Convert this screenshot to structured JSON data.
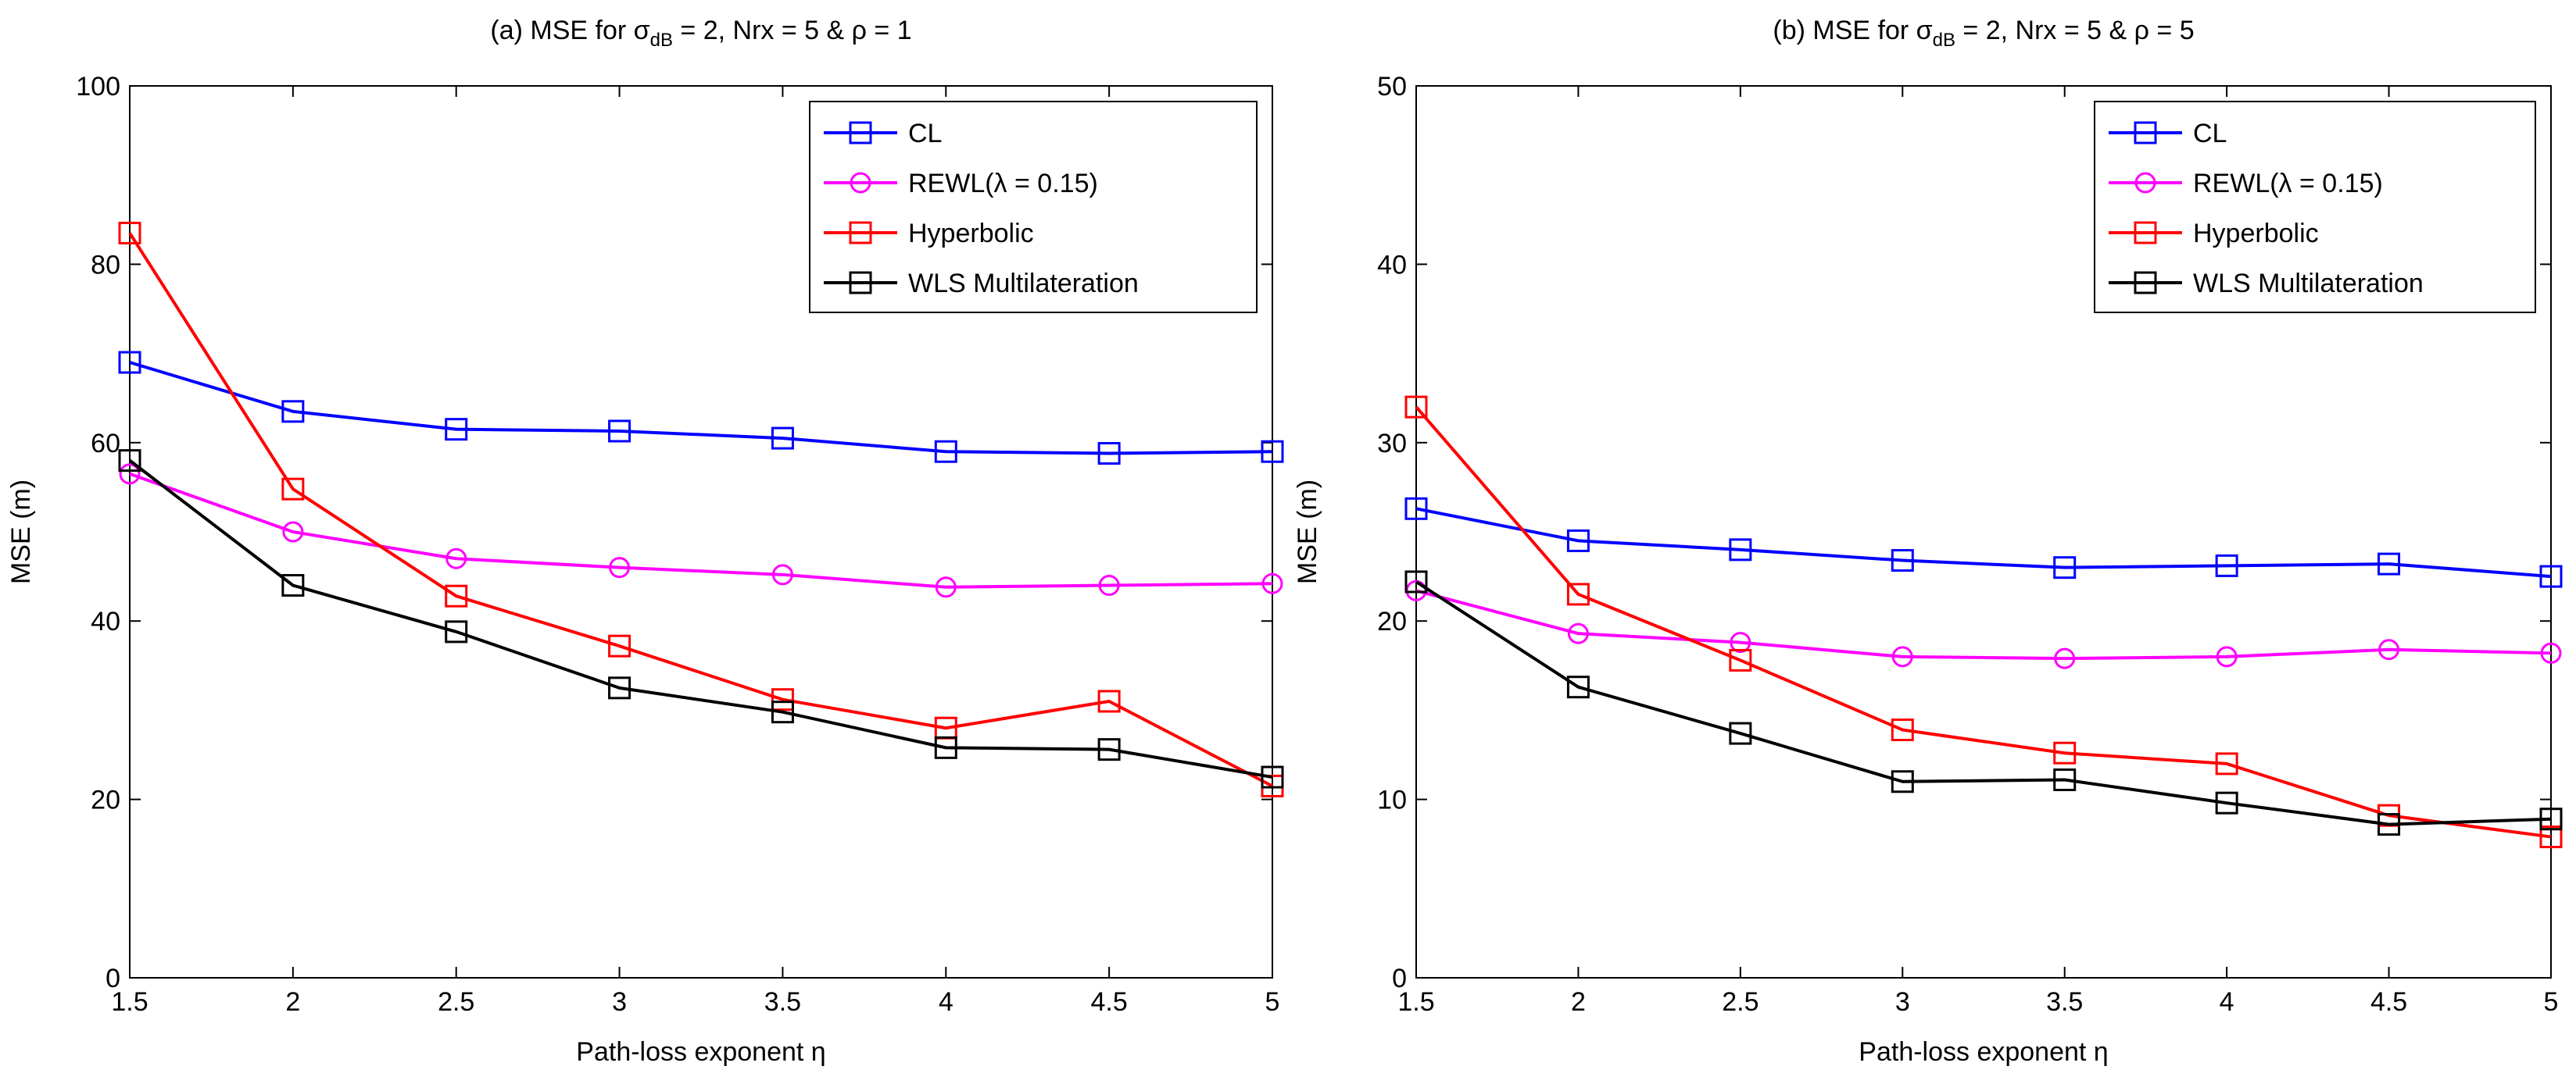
{
  "chart_data": [
    {
      "type": "line",
      "title": {
        "prefix": "(a) MSE for σ",
        "sub": "dB",
        "suffix": " = 2, Nrx = 5 & ρ = 1"
      },
      "xlabel": "Path-loss exponent η",
      "ylabel": "MSE (m)",
      "xlim": [
        1.5,
        5
      ],
      "ylim": [
        0,
        100
      ],
      "xticks": [
        1.5,
        2,
        2.5,
        3,
        3.5,
        4,
        4.5,
        5
      ],
      "xtick_labels": [
        "1.5",
        "2",
        "2.5",
        "3",
        "3.5",
        "4",
        "4.5",
        "5"
      ],
      "yticks": [
        0,
        20,
        40,
        60,
        80,
        100
      ],
      "ytick_labels": [
        "0",
        "20",
        "40",
        "60",
        "80",
        "100"
      ],
      "grid": false,
      "legend": "top-right",
      "x": [
        1.5,
        2,
        2.5,
        3,
        3.5,
        4,
        4.5,
        5
      ],
      "series": [
        {
          "name": "CL",
          "color": "#0000ff",
          "marker": "square",
          "values": [
            69,
            63.5,
            61.5,
            61.3,
            60.5,
            59,
            58.8,
            59
          ]
        },
        {
          "name": "REWL(λ = 0.15)",
          "color": "#ff00ff",
          "marker": "circle",
          "values": [
            56.5,
            50,
            47,
            46,
            45.2,
            43.8,
            44,
            44.2
          ]
        },
        {
          "name": "Hyperbolic",
          "color": "#ff0000",
          "marker": "square",
          "values": [
            83.5,
            54.8,
            42.8,
            37.2,
            31.2,
            28,
            31,
            21.5
          ]
        },
        {
          "name": "WLS Multilateration",
          "color": "#000000",
          "marker": "square",
          "values": [
            58,
            44,
            38.8,
            32.5,
            29.8,
            25.8,
            25.6,
            22.5
          ]
        }
      ]
    },
    {
      "type": "line",
      "title": {
        "prefix": "(b) MSE for σ",
        "sub": "dB",
        "suffix": " = 2, Nrx = 5 & ρ = 5"
      },
      "xlabel": "Path-loss exponent η",
      "ylabel": "MSE (m)",
      "xlim": [
        1.5,
        5
      ],
      "ylim": [
        0,
        50
      ],
      "xticks": [
        1.5,
        2,
        2.5,
        3,
        3.5,
        4,
        4.5,
        5
      ],
      "xtick_labels": [
        "1.5",
        "2",
        "2.5",
        "3",
        "3.5",
        "4",
        "4.5",
        "5"
      ],
      "yticks": [
        0,
        10,
        20,
        30,
        40,
        50
      ],
      "ytick_labels": [
        "0",
        "10",
        "20",
        "30",
        "40",
        "50"
      ],
      "grid": false,
      "legend": "top-right",
      "x": [
        1.5,
        2,
        2.5,
        3,
        3.5,
        4,
        4.5,
        5
      ],
      "series": [
        {
          "name": "CL",
          "color": "#0000ff",
          "marker": "square",
          "values": [
            26.3,
            24.5,
            24,
            23.4,
            23,
            23.1,
            23.2,
            22.5
          ]
        },
        {
          "name": "REWL(λ = 0.15)",
          "color": "#ff00ff",
          "marker": "circle",
          "values": [
            21.7,
            19.3,
            18.8,
            18,
            17.9,
            18,
            18.4,
            18.2
          ]
        },
        {
          "name": "Hyperbolic",
          "color": "#ff0000",
          "marker": "square",
          "values": [
            32,
            21.5,
            17.8,
            13.9,
            12.6,
            12,
            9.1,
            7.9
          ]
        },
        {
          "name": "WLS Multilateration",
          "color": "#000000",
          "marker": "square",
          "values": [
            22.2,
            16.3,
            13.7,
            11,
            11.1,
            9.8,
            8.6,
            8.9
          ]
        }
      ]
    }
  ]
}
